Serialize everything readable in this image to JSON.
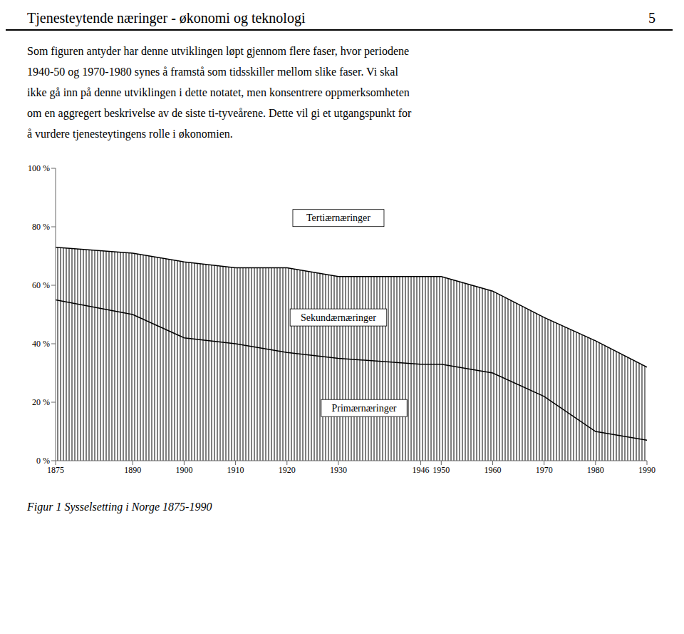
{
  "page_header": "Tjenesteytende næringer - økonomi og teknologi",
  "page_number": 5,
  "paragraph": [
    "Som figuren antyder har denne utviklingen løpt gjennom flere faser, hvor periodene",
    "1940-50 og 1970-1980 synes å framstå som tidsskiller mellom slike faser. Vi skal",
    "ikke gå inn på denne utviklingen i dette notatet, men konsentrere oppmerksomheten",
    "om en aggregert beskrivelse av de siste ti-tyveårene. Dette vil gi et utgangspunkt for",
    "å vurdere tjenesteytingens rolle i økonomien."
  ],
  "caption": "Figur 1 Sysselsetting i Norge 1875-1990",
  "chart_data": {
    "type": "area",
    "x": [
      1875,
      1890,
      1900,
      1910,
      1920,
      1930,
      1946,
      1950,
      1960,
      1970,
      1980,
      1990
    ],
    "series": [
      {
        "type": "area",
        "color": "#000000",
        "values": [
          73,
          71,
          68,
          66,
          66,
          63,
          63,
          63,
          58,
          49,
          41,
          32
        ]
      },
      {
        "type": "line",
        "color": "#000000",
        "values": [
          55,
          50,
          42,
          40,
          37,
          35,
          33,
          33,
          30,
          22,
          10,
          7
        ]
      }
    ],
    "xlim": [
      1875,
      1990
    ],
    "xticks": [
      1875,
      1890,
      1900,
      1910,
      1920,
      1930,
      1946,
      1950,
      1960,
      1970,
      1980,
      1990
    ],
    "ylim": [
      0,
      100
    ],
    "yticks": [
      {
        "value": 0,
        "label": "0 %"
      },
      {
        "value": 20,
        "label": "20 %"
      },
      {
        "value": 40,
        "label": "40 %"
      },
      {
        "value": 60,
        "label": "60 %"
      },
      {
        "value": 80,
        "label": "80 %"
      },
      {
        "value": 100,
        "label": "100 %"
      }
    ],
    "grid": false,
    "annotations": [
      {
        "text": "Tertiærnæringer",
        "x": 1930,
        "y": 83
      },
      {
        "text": "Sekundærnæringer",
        "x": 1930,
        "y": 49
      },
      {
        "text": "Primærnæringer",
        "x": 1935,
        "y": 18
      }
    ]
  }
}
